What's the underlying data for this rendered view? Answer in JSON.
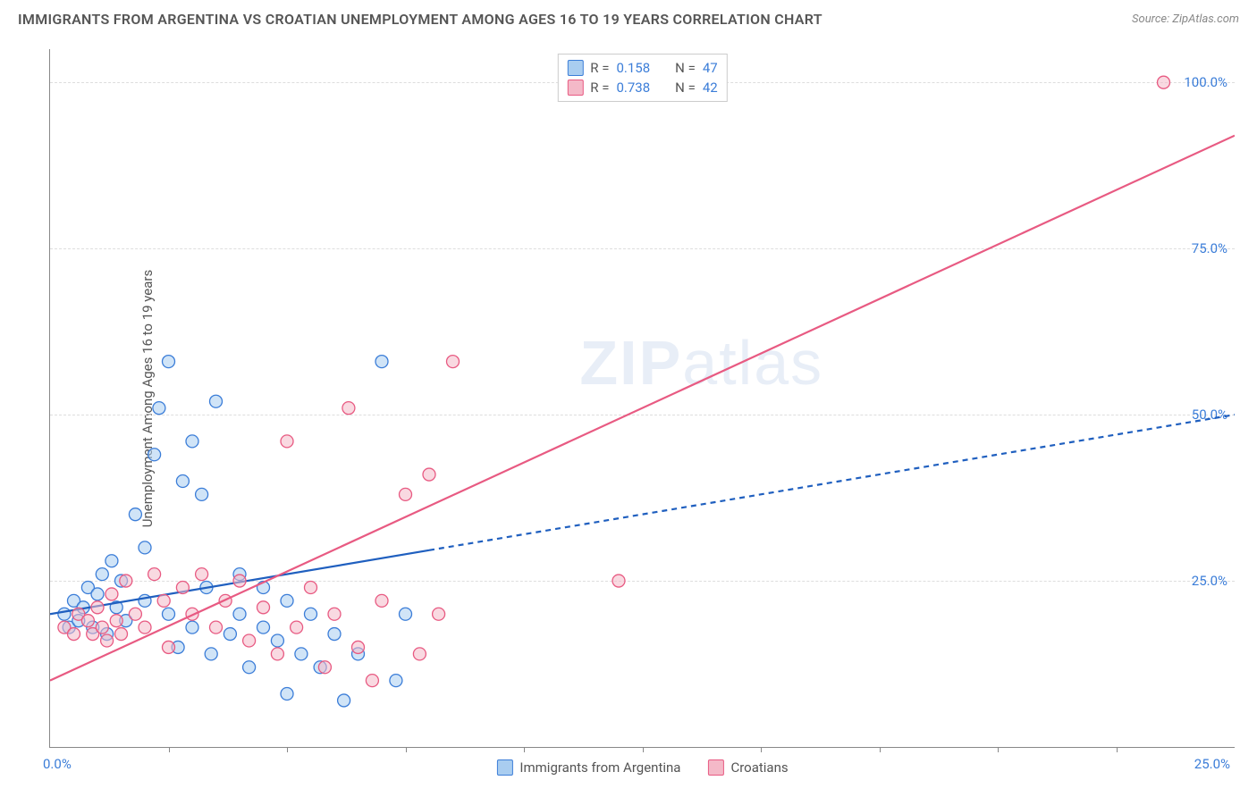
{
  "title": "IMMIGRANTS FROM ARGENTINA VS CROATIAN UNEMPLOYMENT AMONG AGES 16 TO 19 YEARS CORRELATION CHART",
  "source_label": "Source: ZipAtlas.com",
  "y_axis_label": "Unemployment Among Ages 16 to 19 years",
  "watermark_a": "ZIP",
  "watermark_b": "atlas",
  "axes": {
    "x_min": 0,
    "x_max": 25,
    "y_min": 0,
    "y_max": 105,
    "x_origin_label": "0.0%",
    "x_max_label": "25.0%",
    "y_ticks": [
      25,
      50,
      75,
      100
    ],
    "y_tick_labels": [
      "25.0%",
      "50.0%",
      "75.0%",
      "100.0%"
    ],
    "x_tick_positions": [
      2.5,
      5,
      7.5,
      10,
      12.5,
      15,
      17.5,
      20,
      22.5
    ],
    "grid_color": "#dddddd",
    "axis_color": "#888888",
    "tick_label_color": "#3b7dd8"
  },
  "series": [
    {
      "key": "argentina",
      "label": "Immigrants from Argentina",
      "fill": "#a9cdf0",
      "stroke": "#3b7dd8",
      "fill_opacity": 0.55,
      "marker_radius": 7,
      "R": "0.158",
      "N": "47",
      "trend": {
        "x1": 0,
        "y1": 20,
        "x2": 25,
        "y2": 50,
        "solid_until_x": 8,
        "color": "#1f5fbf",
        "width": 2.2,
        "dash": "6,5"
      },
      "points": [
        [
          0.3,
          20
        ],
        [
          0.4,
          18
        ],
        [
          0.5,
          22
        ],
        [
          0.6,
          19
        ],
        [
          0.7,
          21
        ],
        [
          0.8,
          24
        ],
        [
          0.9,
          18
        ],
        [
          1.0,
          23
        ],
        [
          1.1,
          26
        ],
        [
          1.2,
          17
        ],
        [
          1.3,
          28
        ],
        [
          1.4,
          21
        ],
        [
          1.5,
          25
        ],
        [
          1.6,
          19
        ],
        [
          1.8,
          35
        ],
        [
          2.0,
          30
        ],
        [
          2.0,
          22
        ],
        [
          2.2,
          44
        ],
        [
          2.3,
          51
        ],
        [
          2.5,
          20
        ],
        [
          2.5,
          58
        ],
        [
          2.7,
          15
        ],
        [
          2.8,
          40
        ],
        [
          3.0,
          18
        ],
        [
          3.0,
          46
        ],
        [
          3.2,
          38
        ],
        [
          3.3,
          24
        ],
        [
          3.4,
          14
        ],
        [
          3.5,
          52
        ],
        [
          3.8,
          17
        ],
        [
          4.0,
          20
        ],
        [
          4.0,
          26
        ],
        [
          4.2,
          12
        ],
        [
          4.5,
          18
        ],
        [
          4.5,
          24
        ],
        [
          4.8,
          16
        ],
        [
          5.0,
          22
        ],
        [
          5.0,
          8
        ],
        [
          5.3,
          14
        ],
        [
          5.5,
          20
        ],
        [
          5.7,
          12
        ],
        [
          6.0,
          17
        ],
        [
          6.2,
          7
        ],
        [
          6.5,
          14
        ],
        [
          7.0,
          58
        ],
        [
          7.3,
          10
        ],
        [
          7.5,
          20
        ]
      ]
    },
    {
      "key": "croatians",
      "label": "Croatians",
      "fill": "#f4b9c8",
      "stroke": "#e85a82",
      "fill_opacity": 0.55,
      "marker_radius": 7,
      "R": "0.738",
      "N": "42",
      "trend": {
        "x1": 0,
        "y1": 10,
        "x2": 25,
        "y2": 92,
        "solid_until_x": 25,
        "color": "#e85a82",
        "width": 2.2
      },
      "points": [
        [
          0.3,
          18
        ],
        [
          0.5,
          17
        ],
        [
          0.6,
          20
        ],
        [
          0.8,
          19
        ],
        [
          0.9,
          17
        ],
        [
          1.0,
          21
        ],
        [
          1.1,
          18
        ],
        [
          1.2,
          16
        ],
        [
          1.3,
          23
        ],
        [
          1.4,
          19
        ],
        [
          1.5,
          17
        ],
        [
          1.6,
          25
        ],
        [
          1.8,
          20
        ],
        [
          2.0,
          18
        ],
        [
          2.2,
          26
        ],
        [
          2.4,
          22
        ],
        [
          2.5,
          15
        ],
        [
          2.8,
          24
        ],
        [
          3.0,
          20
        ],
        [
          3.2,
          26
        ],
        [
          3.5,
          18
        ],
        [
          3.7,
          22
        ],
        [
          4.0,
          25
        ],
        [
          4.2,
          16
        ],
        [
          4.5,
          21
        ],
        [
          4.8,
          14
        ],
        [
          5.0,
          46
        ],
        [
          5.2,
          18
        ],
        [
          5.5,
          24
        ],
        [
          5.8,
          12
        ],
        [
          6.0,
          20
        ],
        [
          6.3,
          51
        ],
        [
          6.5,
          15
        ],
        [
          6.8,
          10
        ],
        [
          7.0,
          22
        ],
        [
          7.5,
          38
        ],
        [
          7.8,
          14
        ],
        [
          8.0,
          41
        ],
        [
          8.2,
          20
        ],
        [
          8.5,
          58
        ],
        [
          12.0,
          25
        ],
        [
          23.5,
          100
        ]
      ]
    }
  ],
  "legend_top": {
    "r_label": "R  =",
    "n_label": "N  ="
  },
  "colors": {
    "background": "#ffffff",
    "title_text": "#555555",
    "source_text": "#888888",
    "watermark": "#e8eef7"
  }
}
